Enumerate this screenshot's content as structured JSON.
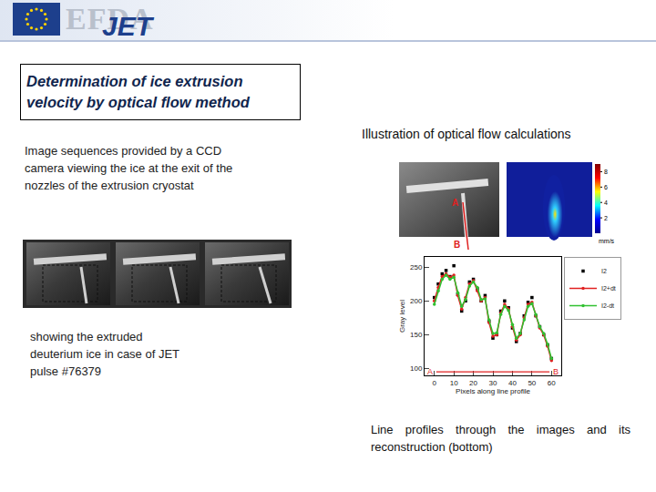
{
  "header": {
    "logo": "EFDA",
    "logo_sub": "JET"
  },
  "title": "Determination of ice extrusion velocity by optical flow method",
  "left": {
    "intro": "Image sequences provided by a CCD camera viewing the ice at the exit of the nozzles of the extrusion cryostat",
    "caption": "showing the extruded deuterium ice in case of JET pulse #76379"
  },
  "right": {
    "heading": "Illustration of optical flow calculations",
    "image_points": [
      "A",
      "B"
    ],
    "colorbar": {
      "range": [
        0,
        9
      ],
      "ticks": [
        2,
        4,
        6,
        8
      ],
      "unit": "mm/s"
    },
    "caption": "Line profiles through the images  and its reconstruction (bottom)"
  },
  "chart_data": {
    "type": "line",
    "x_label": "Pixels along line profile",
    "y_label": "Gray level",
    "x": [
      0,
      2,
      4,
      6,
      8,
      10,
      12,
      14,
      16,
      18,
      20,
      22,
      24,
      26,
      28,
      30,
      32,
      34,
      36,
      38,
      40,
      42,
      44,
      46,
      48,
      50,
      52,
      54,
      56,
      58,
      60
    ],
    "series": [
      {
        "name": "I2",
        "color": "#000000",
        "marker": "square",
        "line_style": "none",
        "values": [
          205,
          225,
          240,
          245,
          236,
          252,
          210,
          185,
          200,
          228,
          232,
          218,
          200,
          208,
          170,
          145,
          150,
          185,
          200,
          190,
          160,
          140,
          152,
          178,
          198,
          205,
          178,
          162,
          150,
          135,
          115
        ]
      },
      {
        "name": "I2+dt",
        "color": "#e02020",
        "marker": "circle",
        "line_style": "solid",
        "values": [
          200,
          220,
          236,
          240,
          235,
          238,
          208,
          188,
          205,
          225,
          230,
          215,
          200,
          205,
          168,
          148,
          150,
          182,
          195,
          188,
          162,
          142,
          150,
          175,
          195,
          198,
          178,
          160,
          150,
          133,
          112
        ]
      },
      {
        "name": "I2-dt",
        "color": "#30c030",
        "marker": "circle",
        "line_style": "solid",
        "values": [
          195,
          215,
          232,
          238,
          232,
          235,
          212,
          192,
          202,
          222,
          228,
          220,
          202,
          203,
          172,
          152,
          153,
          180,
          192,
          186,
          165,
          145,
          152,
          172,
          192,
          196,
          180,
          162,
          152,
          136,
          115
        ]
      }
    ],
    "profile_ends": [
      "A",
      "B"
    ],
    "xlim": [
      -5,
      65
    ],
    "xticks": [
      0,
      10,
      20,
      30,
      40,
      50,
      60
    ],
    "ylim": [
      90,
      265
    ],
    "yticks": [
      100,
      150,
      200,
      250
    ],
    "legend": "right",
    "grid": false
  }
}
